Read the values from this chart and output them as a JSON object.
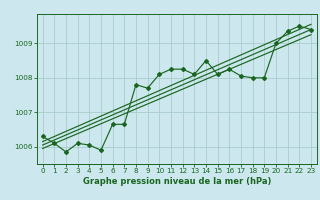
{
  "title": "Graphe pression niveau de la mer (hPa)",
  "bg_color": "#cce8ee",
  "grid_color": "#aacccc",
  "line_color": "#1a6620",
  "marker_color": "#1a6620",
  "xlim": [
    -0.5,
    23.5
  ],
  "ylim": [
    1005.5,
    1009.85
  ],
  "yticks": [
    1006,
    1007,
    1008,
    1009
  ],
  "xticks": [
    0,
    1,
    2,
    3,
    4,
    5,
    6,
    7,
    8,
    9,
    10,
    11,
    12,
    13,
    14,
    15,
    16,
    17,
    18,
    19,
    20,
    21,
    22,
    23
  ],
  "data_line_x": [
    0,
    1,
    2,
    3,
    4,
    5,
    6,
    7,
    8,
    9,
    10,
    11,
    12,
    13,
    14,
    15,
    16,
    17,
    18,
    19,
    20,
    21,
    22,
    23
  ],
  "data_line_y": [
    1006.3,
    1006.1,
    1005.85,
    1006.1,
    1006.05,
    1005.9,
    1006.65,
    1006.65,
    1007.8,
    1007.7,
    1008.1,
    1008.25,
    1008.25,
    1008.1,
    1008.5,
    1008.1,
    1008.25,
    1008.05,
    1008.0,
    1008.0,
    1009.0,
    1009.35,
    1009.5,
    1009.4
  ],
  "trend1_x": [
    0,
    23
  ],
  "trend1_y": [
    1005.95,
    1009.25
  ],
  "trend2_x": [
    0,
    23
  ],
  "trend2_y": [
    1006.05,
    1009.4
  ],
  "trend3_x": [
    0,
    23
  ],
  "trend3_y": [
    1006.15,
    1009.55
  ],
  "xlabel_fontsize": 6.0,
  "tick_fontsize": 5.2
}
